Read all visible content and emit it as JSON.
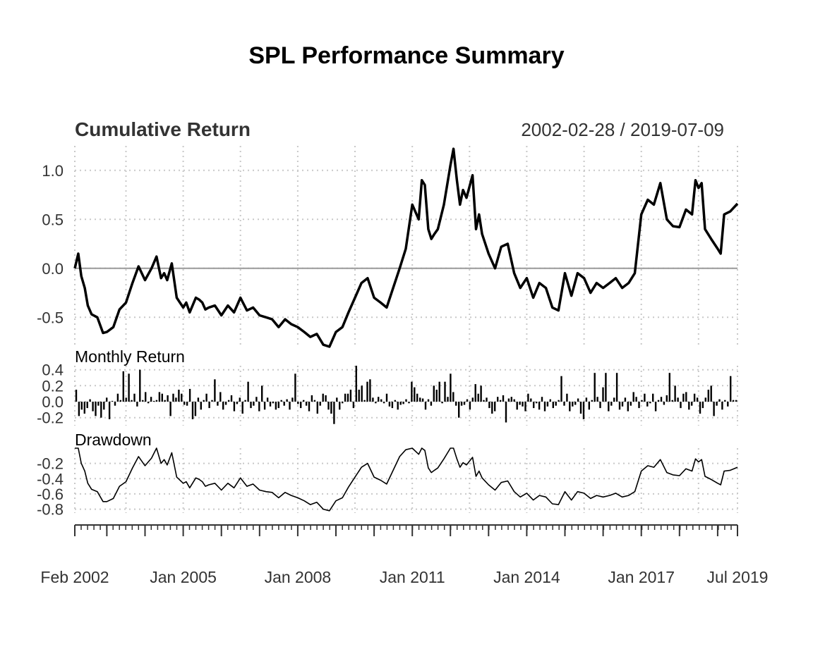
{
  "chart_data": {
    "type": "line",
    "title": "SPL Performance Summary",
    "date_range": "2002-02-28 / 2019-07-09",
    "x_ticks": [
      "Feb 2002",
      "Jan 2005",
      "Jan 2008",
      "Jan 2011",
      "Jan 2014",
      "Jan 2017",
      "Jul 2019"
    ],
    "x_tick_years": [
      2002.16,
      2005.0,
      2008.0,
      2011.0,
      2014.0,
      2017.0,
      2019.52
    ],
    "xlim": [
      2002.16,
      2019.52
    ],
    "colors": {
      "line": "#000000",
      "grid": "#c8c8c8",
      "zero": "#999999",
      "text": "#333333"
    },
    "panels": [
      {
        "name": "Cumulative Return",
        "type": "line",
        "ylim": [
          -0.8,
          1.25
        ],
        "y_ticks": [
          "1.0",
          "0.5",
          "0.0",
          "-0.5"
        ],
        "y_tick_values": [
          1.0,
          0.5,
          0.0,
          -0.5
        ],
        "x": [
          2002.16,
          2002.25,
          2002.33,
          2002.42,
          2002.5,
          2002.6,
          2002.75,
          2002.9,
          2003.0,
          2003.17,
          2003.33,
          2003.5,
          2003.67,
          2003.83,
          2004.0,
          2004.17,
          2004.3,
          2004.42,
          2004.5,
          2004.58,
          2004.7,
          2004.83,
          2005.0,
          2005.08,
          2005.17,
          2005.33,
          2005.42,
          2005.5,
          2005.58,
          2005.67,
          2005.83,
          2006.0,
          2006.17,
          2006.33,
          2006.5,
          2006.67,
          2006.83,
          2007.0,
          2007.17,
          2007.33,
          2007.5,
          2007.67,
          2007.83,
          2008.0,
          2008.17,
          2008.33,
          2008.5,
          2008.67,
          2008.83,
          2009.0,
          2009.17,
          2009.33,
          2009.5,
          2009.67,
          2009.83,
          2010.0,
          2010.17,
          2010.33,
          2010.5,
          2010.67,
          2010.83,
          2011.0,
          2011.17,
          2011.25,
          2011.33,
          2011.42,
          2011.5,
          2011.58,
          2011.67,
          2011.83,
          2012.0,
          2012.08,
          2012.17,
          2012.25,
          2012.33,
          2012.42,
          2012.58,
          2012.67,
          2012.75,
          2012.83,
          2013.0,
          2013.17,
          2013.33,
          2013.5,
          2013.67,
          2013.83,
          2014.0,
          2014.17,
          2014.33,
          2014.5,
          2014.67,
          2014.83,
          2015.0,
          2015.17,
          2015.33,
          2015.5,
          2015.67,
          2015.83,
          2016.0,
          2016.17,
          2016.33,
          2016.5,
          2016.67,
          2016.83,
          2017.0,
          2017.17,
          2017.33,
          2017.5,
          2017.67,
          2017.83,
          2018.0,
          2018.17,
          2018.33,
          2018.42,
          2018.5,
          2018.58,
          2018.67,
          2018.83,
          2019.0,
          2019.08,
          2019.17,
          2019.33,
          2019.52
        ],
        "y": [
          0.0,
          0.15,
          -0.08,
          -0.2,
          -0.38,
          -0.47,
          -0.5,
          -0.66,
          -0.65,
          -0.6,
          -0.42,
          -0.35,
          -0.15,
          0.02,
          -0.12,
          0.0,
          0.12,
          -0.1,
          -0.05,
          -0.12,
          0.05,
          -0.3,
          -0.4,
          -0.35,
          -0.45,
          -0.3,
          -0.32,
          -0.35,
          -0.42,
          -0.4,
          -0.38,
          -0.48,
          -0.38,
          -0.45,
          -0.3,
          -0.43,
          -0.4,
          -0.48,
          -0.5,
          -0.52,
          -0.6,
          -0.52,
          -0.57,
          -0.6,
          -0.65,
          -0.7,
          -0.67,
          -0.78,
          -0.8,
          -0.65,
          -0.6,
          -0.45,
          -0.3,
          -0.15,
          -0.1,
          -0.3,
          -0.35,
          -0.4,
          -0.2,
          0.0,
          0.2,
          0.65,
          0.5,
          0.9,
          0.85,
          0.4,
          0.3,
          0.35,
          0.4,
          0.65,
          1.05,
          1.22,
          0.9,
          0.65,
          0.8,
          0.72,
          0.95,
          0.4,
          0.55,
          0.35,
          0.15,
          0.0,
          0.22,
          0.25,
          -0.05,
          -0.2,
          -0.1,
          -0.3,
          -0.15,
          -0.2,
          -0.4,
          -0.43,
          -0.05,
          -0.28,
          -0.05,
          -0.1,
          -0.25,
          -0.15,
          -0.2,
          -0.15,
          -0.1,
          -0.2,
          -0.15,
          -0.05,
          0.55,
          0.7,
          0.65,
          0.87,
          0.5,
          0.43,
          0.42,
          0.6,
          0.55,
          0.9,
          0.82,
          0.87,
          0.4,
          0.3,
          0.2,
          0.15,
          0.55,
          0.58,
          0.66
        ]
      },
      {
        "name": "Monthly Return",
        "type": "bar",
        "ylim": [
          -0.3,
          0.45
        ],
        "y_ticks": [
          "0.4",
          "0.2",
          "0.0",
          "-0.2"
        ],
        "y_tick_values": [
          0.4,
          0.2,
          0.0,
          -0.2
        ],
        "values": [
          0.15,
          -0.18,
          -0.1,
          -0.15,
          -0.08,
          0.03,
          -0.12,
          -0.18,
          -0.05,
          -0.2,
          -0.1,
          0.05,
          -0.22,
          0.01,
          -0.05,
          0.1,
          0.02,
          0.38,
          0.05,
          0.35,
          0.02,
          0.1,
          -0.06,
          0.4,
          0.02,
          0.12,
          -0.02,
          0.06,
          0.01,
          0.02,
          0.12,
          0.1,
          0.02,
          0.08,
          -0.18,
          0.1,
          0.05,
          0.15,
          0.1,
          -0.04,
          -0.05,
          0.16,
          -0.22,
          -0.18,
          0.05,
          -0.1,
          0.02,
          0.1,
          -0.08,
          0.02,
          0.28,
          -0.05,
          0.12,
          -0.1,
          -0.04,
          0.02,
          0.08,
          -0.12,
          -0.03,
          0.05,
          -0.15,
          0.02,
          0.25,
          -0.08,
          -0.05,
          0.06,
          -0.12,
          0.2,
          -0.1,
          0.05,
          -0.06,
          -0.02,
          -0.1,
          -0.08,
          0.02,
          -0.05,
          0.03,
          -0.1,
          0.05,
          0.35,
          -0.03,
          -0.08,
          0.02,
          -0.05,
          -0.12,
          0.08,
          0.02,
          -0.15,
          -0.05,
          0.1,
          0.08,
          -0.1,
          -0.15,
          -0.28,
          0.05,
          -0.1,
          -0.02,
          0.1,
          0.1,
          0.15,
          -0.08,
          0.45,
          0.15,
          0.2,
          0.02,
          0.25,
          0.28,
          0.05,
          -0.02,
          0.06,
          0.03,
          -0.02,
          0.1,
          -0.06,
          -0.08,
          0.02,
          -0.1,
          -0.04,
          -0.03,
          0.03,
          -0.02,
          0.25,
          0.18,
          0.1,
          0.05,
          0.04,
          -0.1,
          0.03,
          -0.05,
          0.2,
          0.15,
          0.25,
          -0.02,
          0.25,
          0.06,
          0.35,
          0.12,
          -0.05,
          -0.2,
          -0.05,
          -0.04,
          0.03,
          -0.1,
          0.05,
          0.22,
          0.1,
          0.2,
          0.02,
          0.05,
          -0.08,
          -0.15,
          -0.12,
          0.06,
          0.02,
          0.08,
          -0.26,
          0.04,
          0.06,
          0.03,
          -0.1,
          -0.04,
          -0.06,
          -0.12,
          0.1,
          0.04,
          -0.08,
          -0.02,
          -0.1,
          0.06,
          -0.12,
          -0.06,
          0.03,
          -0.08,
          -0.05,
          0.02,
          0.32,
          -0.05,
          0.1,
          -0.12,
          -0.06,
          -0.04,
          0.04,
          -0.15,
          -0.22,
          0.05,
          -0.1,
          0.02,
          0.36,
          0.06,
          -0.08,
          0.18,
          0.36,
          -0.12,
          -0.05,
          0.05,
          0.36,
          -0.1,
          -0.06,
          0.05,
          -0.12,
          -0.05,
          0.12,
          0.06,
          -0.08,
          0.02,
          0.1,
          -0.06,
          -0.02,
          0.1,
          -0.12,
          0.02,
          0.06,
          -0.04,
          0.08,
          0.36,
          0.02,
          0.2,
          0.05,
          -0.08,
          0.1,
          0.12,
          -0.1,
          -0.05,
          0.1,
          0.05,
          -0.15,
          -0.08,
          0.05,
          0.15,
          0.2,
          -0.18,
          -0.05,
          0.03,
          -0.1,
          0.02,
          -0.06,
          0.32,
          0.02,
          0.02
        ]
      },
      {
        "name": "Drawdown",
        "type": "line",
        "ylim": [
          -0.85,
          0.0
        ],
        "y_ticks": [
          "-0.2",
          "-0.4",
          "-0.6",
          "-0.8"
        ],
        "y_tick_values": [
          -0.2,
          -0.4,
          -0.6,
          -0.8
        ],
        "x": [
          2002.16,
          2002.25,
          2002.33,
          2002.42,
          2002.5,
          2002.6,
          2002.75,
          2002.9,
          2003.0,
          2003.17,
          2003.33,
          2003.5,
          2003.67,
          2003.83,
          2004.0,
          2004.17,
          2004.3,
          2004.42,
          2004.5,
          2004.58,
          2004.7,
          2004.83,
          2005.0,
          2005.08,
          2005.17,
          2005.33,
          2005.42,
          2005.5,
          2005.58,
          2005.67,
          2005.83,
          2006.0,
          2006.17,
          2006.33,
          2006.5,
          2006.67,
          2006.83,
          2007.0,
          2007.17,
          2007.33,
          2007.5,
          2007.67,
          2007.83,
          2008.0,
          2008.17,
          2008.33,
          2008.5,
          2008.67,
          2008.83,
          2009.0,
          2009.17,
          2009.33,
          2009.5,
          2009.67,
          2009.83,
          2010.0,
          2010.17,
          2010.33,
          2010.5,
          2010.67,
          2010.83,
          2011.0,
          2011.17,
          2011.25,
          2011.33,
          2011.42,
          2011.5,
          2011.58,
          2011.67,
          2011.83,
          2012.0,
          2012.08,
          2012.17,
          2012.25,
          2012.33,
          2012.42,
          2012.58,
          2012.67,
          2012.75,
          2012.83,
          2013.0,
          2013.17,
          2013.33,
          2013.5,
          2013.67,
          2013.83,
          2014.0,
          2014.17,
          2014.33,
          2014.5,
          2014.67,
          2014.83,
          2015.0,
          2015.17,
          2015.33,
          2015.5,
          2015.67,
          2015.83,
          2016.0,
          2016.17,
          2016.33,
          2016.5,
          2016.67,
          2016.83,
          2017.0,
          2017.17,
          2017.33,
          2017.5,
          2017.67,
          2017.83,
          2018.0,
          2018.17,
          2018.33,
          2018.42,
          2018.5,
          2018.58,
          2018.67,
          2018.83,
          2019.0,
          2019.08,
          2019.17,
          2019.33,
          2019.52
        ],
        "y": [
          0.0,
          0.0,
          -0.2,
          -0.3,
          -0.46,
          -0.54,
          -0.57,
          -0.7,
          -0.7,
          -0.66,
          -0.5,
          -0.44,
          -0.26,
          -0.11,
          -0.23,
          -0.13,
          0.0,
          -0.2,
          -0.15,
          -0.22,
          -0.06,
          -0.38,
          -0.46,
          -0.44,
          -0.52,
          -0.39,
          -0.41,
          -0.44,
          -0.5,
          -0.48,
          -0.46,
          -0.55,
          -0.46,
          -0.52,
          -0.39,
          -0.5,
          -0.47,
          -0.55,
          -0.57,
          -0.58,
          -0.65,
          -0.58,
          -0.62,
          -0.65,
          -0.69,
          -0.74,
          -0.71,
          -0.8,
          -0.82,
          -0.69,
          -0.65,
          -0.51,
          -0.38,
          -0.25,
          -0.2,
          -0.38,
          -0.42,
          -0.47,
          -0.29,
          -0.11,
          -0.02,
          0.0,
          -0.08,
          0.0,
          -0.03,
          -0.26,
          -0.32,
          -0.29,
          -0.26,
          -0.14,
          0.0,
          0.0,
          -0.14,
          -0.25,
          -0.19,
          -0.22,
          -0.12,
          -0.37,
          -0.3,
          -0.39,
          -0.48,
          -0.55,
          -0.45,
          -0.43,
          -0.57,
          -0.64,
          -0.59,
          -0.68,
          -0.62,
          -0.64,
          -0.73,
          -0.74,
          -0.57,
          -0.68,
          -0.57,
          -0.59,
          -0.66,
          -0.62,
          -0.64,
          -0.62,
          -0.59,
          -0.64,
          -0.62,
          -0.57,
          -0.3,
          -0.23,
          -0.25,
          -0.15,
          -0.32,
          -0.35,
          -0.36,
          -0.27,
          -0.3,
          -0.14,
          -0.18,
          -0.15,
          -0.37,
          -0.41,
          -0.46,
          -0.48,
          -0.3,
          -0.29,
          -0.25
        ]
      }
    ]
  }
}
